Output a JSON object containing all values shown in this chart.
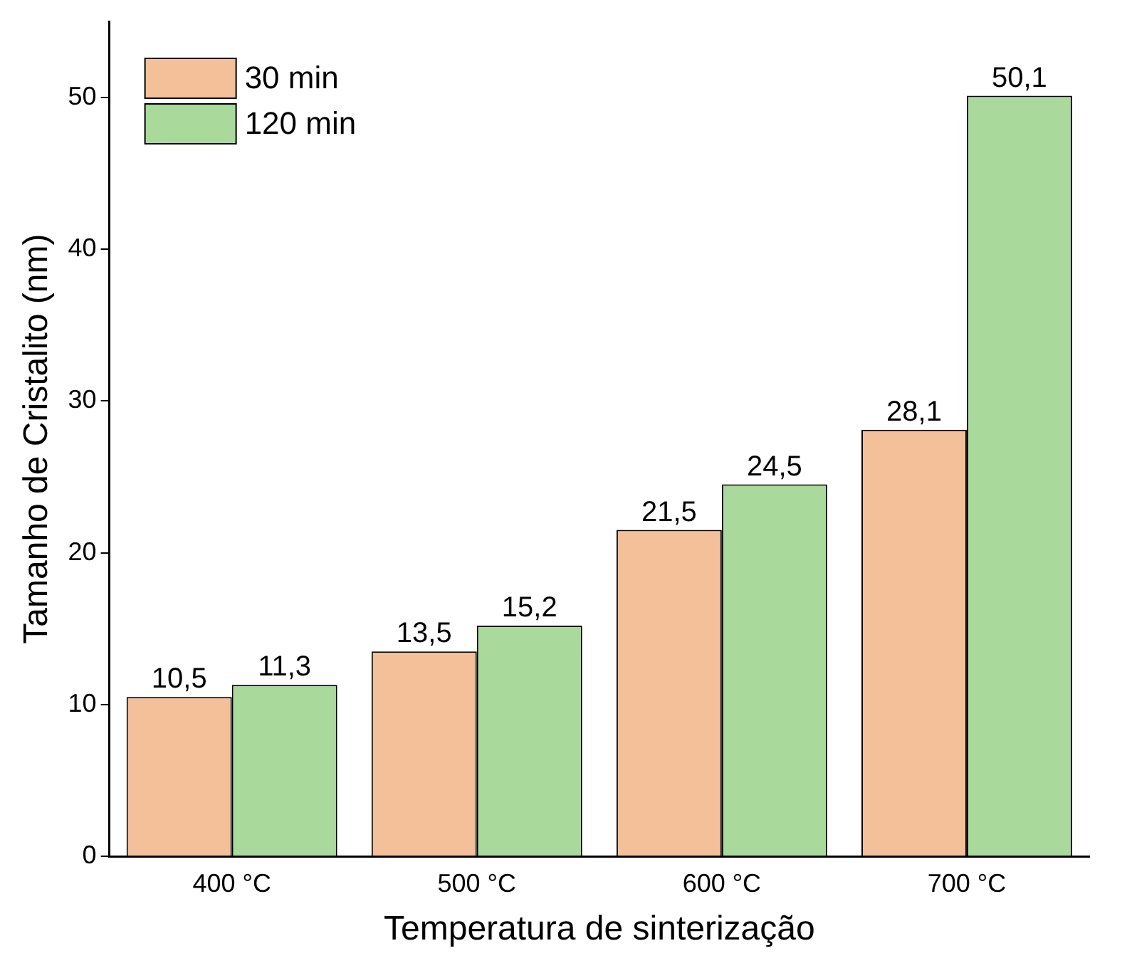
{
  "chart_data": {
    "type": "bar",
    "xlabel": "Temperatura de sinterização",
    "ylabel": "Tamanho de Cristalito (nm)",
    "categories": [
      "400 °C",
      "500 °C",
      "600 °C",
      "700 °C"
    ],
    "series": [
      {
        "name": "30 min",
        "color": "#f4c09a",
        "values": [
          10.5,
          13.5,
          21.5,
          28.1
        ],
        "value_labels": [
          "10,5",
          "13,5",
          "21,5",
          "28,1"
        ]
      },
      {
        "name": "120 min",
        "color": "#a9d99b",
        "values": [
          11.3,
          15.2,
          24.5,
          50.1
        ],
        "value_labels": [
          "11,3",
          "15,2",
          "24,5",
          "50,1"
        ]
      }
    ],
    "ylim": [
      0,
      55
    ],
    "yticks": [
      0,
      10,
      20,
      30,
      40,
      50
    ],
    "grid": false,
    "legend": "top left"
  }
}
